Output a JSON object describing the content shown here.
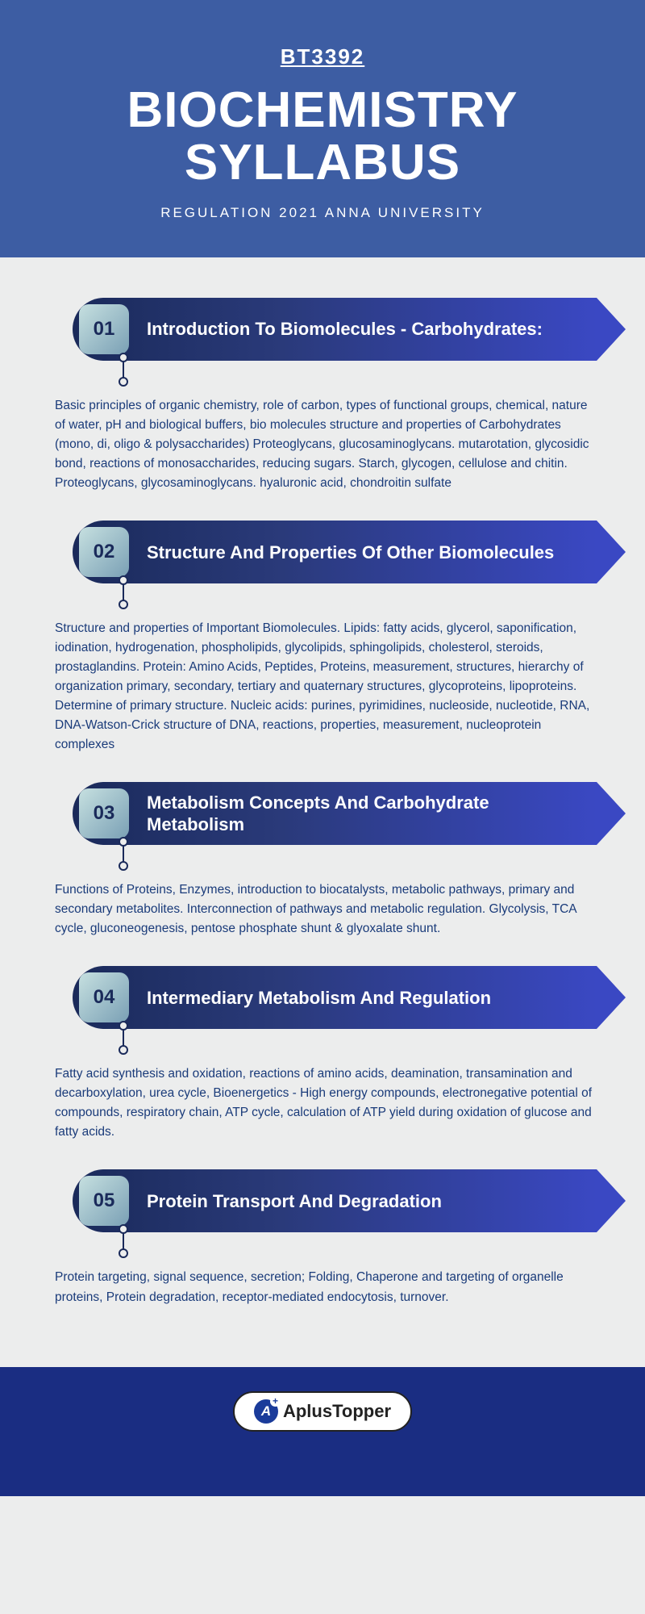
{
  "header": {
    "course_code": "BT3392",
    "title": "BIOCHEMISTRY SYLLABUS",
    "subtitle": "REGULATION 2021 ANNA UNIVERSITY",
    "bg_color": "#3d5da3",
    "text_color": "#ffffff",
    "code_fontsize": 26,
    "title_fontsize": 62,
    "subtitle_fontsize": 17
  },
  "body": {
    "bg_color": "#eceded",
    "desc_color": "#1a3b7a",
    "banner_gradient_start": "#1a2a5a",
    "banner_gradient_end": "#3a48c3",
    "badge_gradient_start": "#c6e0e0",
    "badge_gradient_end": "#7aa0b5",
    "unit_title_fontsize": 22,
    "desc_fontsize": 15.5
  },
  "units": [
    {
      "num": "01",
      "title": "Introduction To Biomolecules - Carbohydrates:",
      "desc": "Basic principles of organic chemistry, role of carbon, types of functional groups, chemical, nature of water, pH and biological buffers, bio molecules structure and properties of Carbohydrates (mono, di, oligo & polysaccharides) Proteoglycans, glucosaminoglycans. mutarotation, glycosidic bond, reactions of monosaccharides, reducing sugars. Starch, glycogen, cellulose and chitin. Proteoglycans, glycosaminoglycans. hyaluronic acid, chondroitin sulfate"
    },
    {
      "num": "02",
      "title": "Structure And Properties Of Other Biomolecules",
      "desc": "Structure and properties of Important Biomolecules. Lipids: fatty acids, glycerol, saponification, iodination, hydrogenation, phospholipids, glycolipids, sphingolipids, cholesterol, steroids, prostaglandins. Protein: Amino Acids, Peptides, Proteins, measurement, structures, hierarchy of organization primary, secondary, tertiary and quaternary structures, glycoproteins, lipoproteins. Determine of primary structure. Nucleic acids: purines, pyrimidines, nucleoside, nucleotide, RNA, DNA-Watson-Crick structure of DNA, reactions, properties, measurement, nucleoprotein complexes"
    },
    {
      "num": "03",
      "title": "Metabolism Concepts And Carbohydrate Metabolism",
      "desc": "Functions of Proteins, Enzymes, introduction to biocatalysts, metabolic pathways, primary and secondary metabolites. Interconnection of pathways and metabolic regulation. Glycolysis, TCA cycle, gluconeogenesis, pentose phosphate shunt & glyoxalate shunt."
    },
    {
      "num": "04",
      "title": "Intermediary Metabolism And Regulation",
      "desc": "Fatty acid synthesis and oxidation, reactions of amino acids, deamination, transamination and decarboxylation, urea cycle, Bioenergetics - High energy compounds, electronegative potential of compounds, respiratory chain, ATP cycle, calculation of ATP yield during oxidation of glucose and fatty acids."
    },
    {
      "num": "05",
      "title": "Protein Transport And Degradation",
      "desc": "Protein targeting, signal sequence, secretion; Folding, Chaperone and targeting of organelle proteins, Protein degradation, receptor-mediated endocytosis, turnover."
    }
  ],
  "footer": {
    "bg_color": "#1a2d82",
    "brand_text": "plusTopper",
    "brand_prefix": "A",
    "brand_icon_letter": "A"
  }
}
